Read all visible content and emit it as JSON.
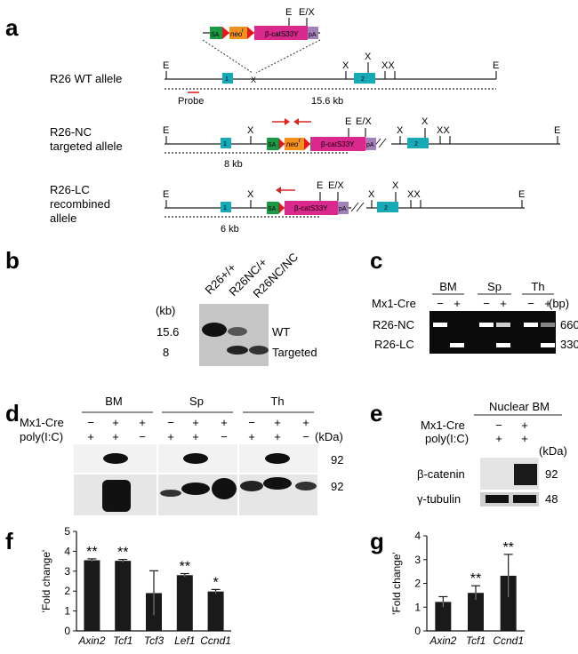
{
  "panels": {
    "a": "a",
    "b": "b",
    "c": "c",
    "d": "d",
    "e": "e",
    "f": "f",
    "g": "g"
  },
  "panel_a": {
    "cassette": {
      "sa": "SA",
      "neo": "neo",
      "neo_sup": "r",
      "bcat": "β-catS33Y",
      "pa": "pA"
    },
    "site_labels": {
      "E": "E",
      "X": "X",
      "EX": "E/X",
      "XX": "XX"
    },
    "exon1": "1",
    "exon2": "2",
    "wt_label": "R26 WT allele",
    "wt_size": "15.6 kb",
    "probe": "Probe",
    "nc_label_1": "R26-NC",
    "nc_label_2": "targeted allele",
    "nc_size": "8 kb",
    "lc_label_1": "R26-LC",
    "lc_label_2": "recombined",
    "lc_label_3": "allele",
    "lc_size": "6 kb"
  },
  "panel_b": {
    "lanes": [
      "R26+/+",
      "R26NC/+",
      "R26NC/NC"
    ],
    "unit": "(kb)",
    "sizes": [
      "15.6",
      "8"
    ],
    "bands": [
      "WT",
      "Targeted"
    ]
  },
  "panel_c": {
    "groups": [
      "BM",
      "Sp",
      "Th"
    ],
    "row_label": "Mx1-Cre",
    "signs": [
      "−",
      "+",
      "−",
      "+",
      "−",
      "+"
    ],
    "unit": "(bp)",
    "rows": [
      "R26-NC",
      "R26-LC"
    ],
    "sizes": [
      "660",
      "330"
    ]
  },
  "panel_d": {
    "groups": [
      "BM",
      "Sp",
      "Th"
    ],
    "row1_label": "Mx1-Cre",
    "row2_label": "poly(I:C)",
    "row1_signs": [
      "−",
      "+",
      "+",
      "−",
      "+",
      "+",
      "−",
      "+",
      "+"
    ],
    "row2_signs": [
      "+",
      "+",
      "−",
      "+",
      "+",
      "−",
      "+",
      "+",
      "−"
    ],
    "unit": "(kDa)",
    "sizes": [
      "92",
      "92"
    ]
  },
  "panel_e": {
    "title": "Nuclear BM",
    "row1_label": "Mx1-Cre",
    "row2_label": "poly(I:C)",
    "row1_signs": [
      "−",
      "+"
    ],
    "row2_signs": [
      "+",
      "+"
    ],
    "unit": "(kDa)",
    "blots": [
      "β-catenin",
      "γ-tubulin"
    ],
    "sizes": [
      "92",
      "48"
    ]
  },
  "chart_data": [
    {
      "type": "bar",
      "panel": "f",
      "ylabel": "'Fold change'",
      "ylim": [
        0,
        5
      ],
      "yticks": [
        "0",
        "1",
        "2",
        "3",
        "4",
        "5"
      ],
      "categories": [
        "Axin2",
        "Tcf1",
        "Tcf3",
        "Lef1",
        "Ccnd1"
      ],
      "values": [
        3.55,
        3.52,
        1.9,
        2.8,
        1.98
      ],
      "errors": [
        0.07,
        0.07,
        1.12,
        0.08,
        0.1
      ],
      "annotations": [
        "**",
        "**",
        "",
        "**",
        "*"
      ]
    },
    {
      "type": "bar",
      "panel": "g",
      "ylabel": "'Fold change'",
      "ylim": [
        0,
        4
      ],
      "yticks": [
        "0",
        "1",
        "2",
        "3",
        "4"
      ],
      "categories": [
        "Axin2",
        "Tcf1",
        "Ccnd1"
      ],
      "values": [
        1.22,
        1.6,
        2.32
      ],
      "errors": [
        0.22,
        0.3,
        0.9
      ],
      "annotations": [
        "",
        "**",
        "**"
      ]
    }
  ]
}
